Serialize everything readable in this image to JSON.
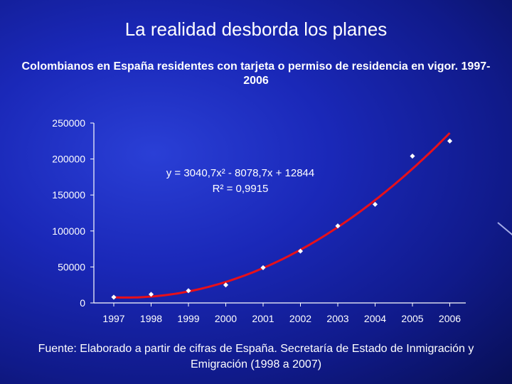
{
  "slide": {
    "title": "La realidad desborda los planes",
    "subtitle": "Colombianos en España residentes con tarjeta o permiso de residencia en vigor. 1997-2006",
    "source": "Fuente: Elaborado a partir de cifras de España. Secretaría de Estado de Inmigración y Emigración (1998 a 2007)"
  },
  "chart_data": {
    "type": "scatter",
    "title": "",
    "xlabel": "",
    "ylabel": "",
    "x": [
      1997,
      1998,
      1999,
      2000,
      2001,
      2002,
      2003,
      2004,
      2005,
      2006
    ],
    "series": [
      {
        "values": [
          8000,
          12000,
          17000,
          25000,
          49000,
          72000,
          107000,
          137000,
          204000,
          225000
        ]
      }
    ],
    "trendline": {
      "type": "polynomial",
      "order": 2,
      "a": 3040.7,
      "b": -8078.7,
      "c": 12844,
      "equation": "y = 3040,7x² - 8078,7x + 12844",
      "r2": "R² = 0,9915",
      "color": "#e8101a"
    },
    "ylim": [
      0,
      250000
    ],
    "yticks": [
      "0",
      "50000",
      "100000",
      "150000",
      "200000",
      "250000"
    ],
    "yticks_values": [
      0,
      50000,
      100000,
      150000,
      200000,
      250000
    ],
    "xticks": [
      "1997",
      "1998",
      "1999",
      "2000",
      "2001",
      "2002",
      "2003",
      "2004",
      "2005",
      "2006"
    ],
    "grid": false,
    "legend": "none",
    "marker_color": "#ffffff",
    "axis_color": "#ffffff"
  }
}
